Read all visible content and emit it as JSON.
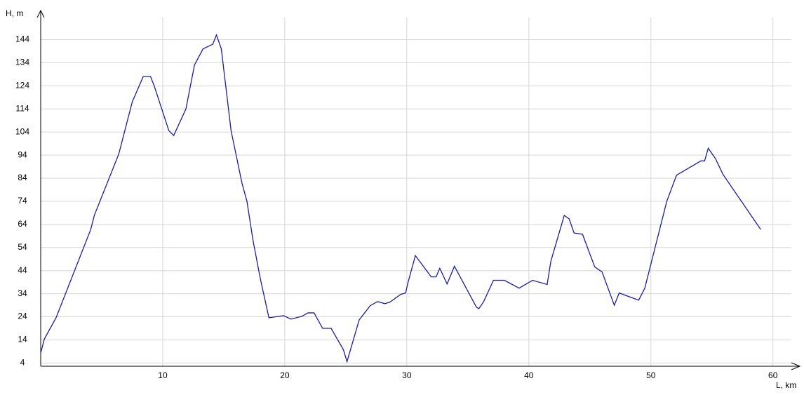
{
  "chart_data": {
    "type": "line",
    "y_label": "H, m",
    "x_label": "L, km",
    "xlim": [
      0,
      62.2
    ],
    "ylim": [
      2.6,
      156.6
    ],
    "xticks": [
      10,
      20,
      30,
      40,
      50,
      60
    ],
    "yticks": [
      4,
      14,
      24,
      34,
      44,
      54,
      64,
      74,
      84,
      94,
      104,
      114,
      124,
      134,
      144
    ],
    "grid": true,
    "x": [
      0,
      0.3,
      1.26,
      4.1,
      4.4,
      6.4,
      7.5,
      8.4,
      9.0,
      9.3,
      10.5,
      10.9,
      11.9,
      12.6,
      13.3,
      14.1,
      14.4,
      14.8,
      15.6,
      16.5,
      16.9,
      17.4,
      18.0,
      18.7,
      19.9,
      20.5,
      21.4,
      21.9,
      22.4,
      23.1,
      23.8,
      24.8,
      25.1,
      26.1,
      27.0,
      27.6,
      28.2,
      28.6,
      29.5,
      29.9,
      30.1,
      30.7,
      32.0,
      32.4,
      32.7,
      33.3,
      33.9,
      35.7,
      35.9,
      36.3,
      37.1,
      38.0,
      39.2,
      40.3,
      41.5,
      41.8,
      42.9,
      43.3,
      43.7,
      44.4,
      44.9,
      45.4,
      46.0,
      47.0,
      47.4,
      49.0,
      49.5,
      51.3,
      52.1,
      54.1,
      54.4,
      54.7,
      55.3,
      55.9,
      59.0
    ],
    "series": [
      {
        "name": "H",
        "color": "#1c1ca0",
        "values": [
          8.3,
          14.4,
          23.6,
          61.8,
          68,
          94.5,
          117,
          128,
          128,
          124,
          104.6,
          102.5,
          114,
          133,
          140,
          142,
          146,
          140,
          104.6,
          81.7,
          74,
          57,
          40.4,
          23.6,
          24.5,
          23,
          24.2,
          25.7,
          25.7,
          19,
          19,
          9.8,
          4.6,
          22.7,
          28.8,
          30.6,
          29.7,
          30.3,
          33.7,
          34.3,
          38.9,
          50.5,
          41.3,
          41.3,
          45,
          38.2,
          45.9,
          28.2,
          27.5,
          30.6,
          39.8,
          39.8,
          36.4,
          39.8,
          38,
          48,
          67.9,
          66.4,
          60.3,
          59.7,
          52.6,
          45.6,
          43.4,
          29,
          34.3,
          31.2,
          36.4,
          74,
          85.3,
          91.5,
          91.5,
          97,
          92.4,
          85.7,
          61.8
        ]
      }
    ]
  }
}
